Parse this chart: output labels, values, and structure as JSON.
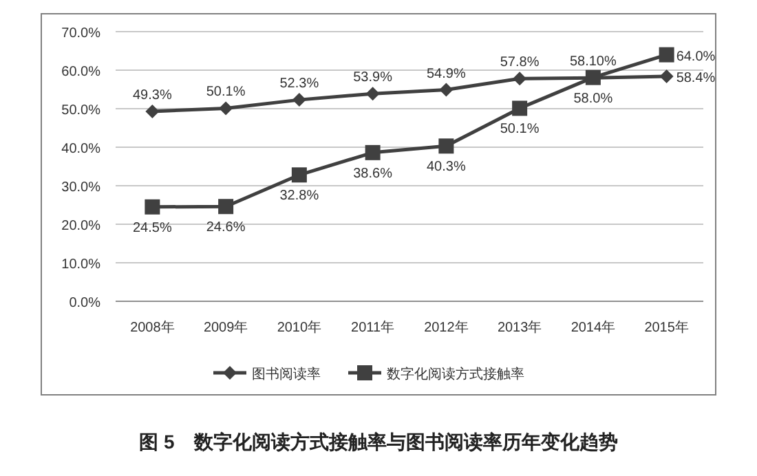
{
  "chart_data": {
    "type": "line",
    "title": "图 5　数字化阅读方式接触率与图书阅读率历年变化趋势",
    "categories": [
      "2008年",
      "2009年",
      "2010年",
      "2011年",
      "2012年",
      "2013年",
      "2014年",
      "2015年"
    ],
    "series": [
      {
        "name": "图书阅读率",
        "color": "#404040",
        "marker": "diamond",
        "values": [
          49.3,
          50.1,
          52.3,
          53.9,
          54.9,
          57.8,
          58.0,
          58.4
        ],
        "value_labels": [
          "49.3%",
          "50.1%",
          "52.3%",
          "53.9%",
          "54.9%",
          "57.8%",
          "58.0%",
          "58.4%"
        ]
      },
      {
        "name": "数字化阅读方式接触率",
        "color": "#404040",
        "marker": "square",
        "values": [
          24.5,
          24.6,
          32.8,
          38.6,
          40.3,
          50.1,
          58.1,
          64.0
        ],
        "value_labels": [
          "24.5%",
          "24.6%",
          "32.8%",
          "38.6%",
          "40.3%",
          "50.1%",
          "58.10%",
          "64.0%"
        ]
      }
    ],
    "ylim": [
      0,
      70
    ],
    "yticks": [
      {
        "value": 0,
        "label": "0.0%"
      },
      {
        "value": 10,
        "label": "10.0%"
      },
      {
        "value": 20,
        "label": "20.0%"
      },
      {
        "value": 30,
        "label": "30.0%"
      },
      {
        "value": 40,
        "label": "40.0%"
      },
      {
        "value": 50,
        "label": "50.0%"
      },
      {
        "value": 60,
        "label": "60.0%"
      },
      {
        "value": 70,
        "label": "70.0%"
      }
    ],
    "grid": "y",
    "legend": "bottom"
  }
}
